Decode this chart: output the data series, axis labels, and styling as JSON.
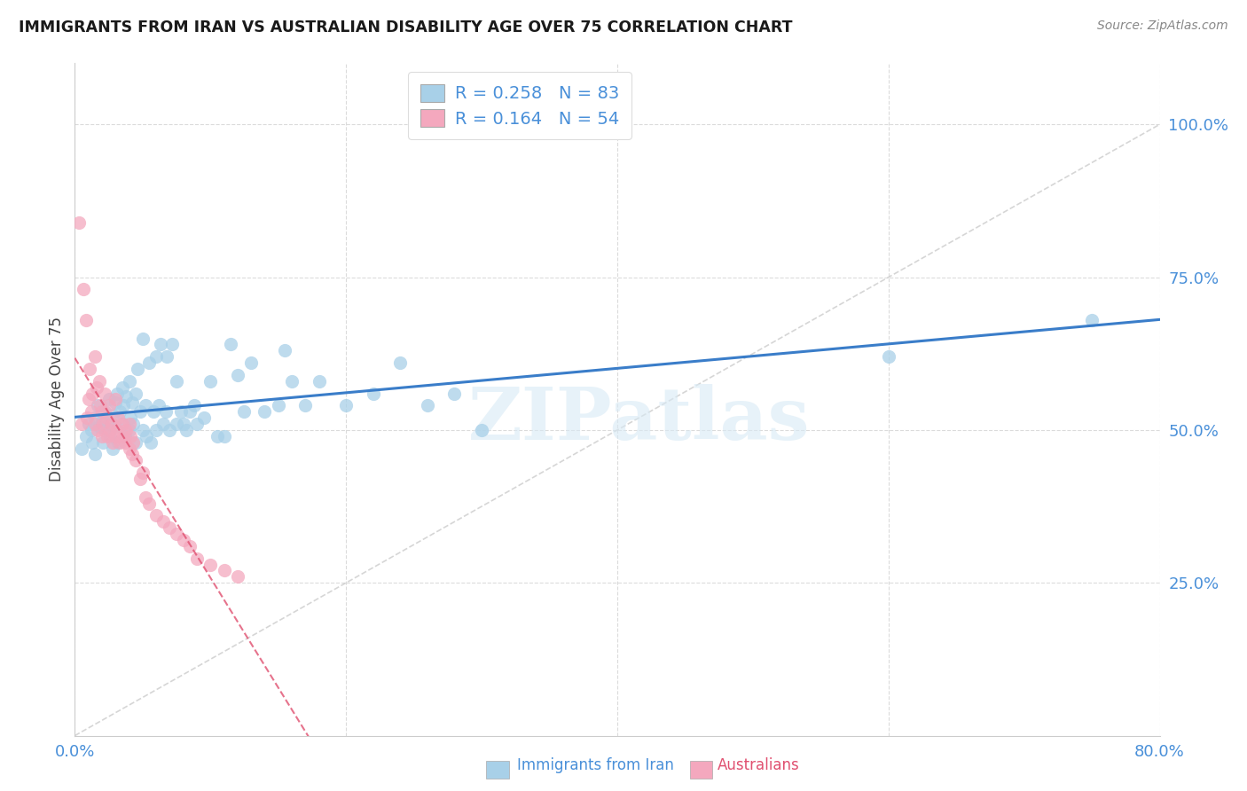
{
  "title": "IMMIGRANTS FROM IRAN VS AUSTRALIAN DISABILITY AGE OVER 75 CORRELATION CHART",
  "source_text": "Source: ZipAtlas.com",
  "ylabel": "Disability Age Over 75",
  "legend_label_1": "Immigrants from Iran",
  "legend_label_2": "Australians",
  "r1": 0.258,
  "n1": 83,
  "r2": 0.164,
  "n2": 54,
  "color1": "#a8d0e8",
  "color2": "#f4a8be",
  "line1_color": "#3a7dc9",
  "line2_color": "#e05070",
  "diag_line_color": "#cccccc",
  "xlim": [
    0.0,
    0.8
  ],
  "ylim": [
    0.0,
    1.1
  ],
  "watermark": "ZIPatlas",
  "scatter1_x": [
    0.005,
    0.008,
    0.01,
    0.012,
    0.013,
    0.015,
    0.015,
    0.017,
    0.018,
    0.02,
    0.021,
    0.022,
    0.022,
    0.025,
    0.025,
    0.026,
    0.028,
    0.028,
    0.03,
    0.03,
    0.031,
    0.032,
    0.033,
    0.035,
    0.035,
    0.036,
    0.037,
    0.038,
    0.04,
    0.04,
    0.041,
    0.042,
    0.043,
    0.045,
    0.045,
    0.046,
    0.048,
    0.05,
    0.05,
    0.052,
    0.053,
    0.055,
    0.056,
    0.058,
    0.06,
    0.06,
    0.062,
    0.063,
    0.065,
    0.067,
    0.068,
    0.07,
    0.072,
    0.075,
    0.075,
    0.078,
    0.08,
    0.082,
    0.085,
    0.088,
    0.09,
    0.095,
    0.1,
    0.105,
    0.11,
    0.115,
    0.12,
    0.125,
    0.13,
    0.14,
    0.15,
    0.155,
    0.16,
    0.17,
    0.18,
    0.2,
    0.22,
    0.24,
    0.26,
    0.28,
    0.3,
    0.6,
    0.75
  ],
  "scatter1_y": [
    0.47,
    0.49,
    0.51,
    0.5,
    0.48,
    0.52,
    0.46,
    0.54,
    0.505,
    0.515,
    0.48,
    0.53,
    0.5,
    0.55,
    0.51,
    0.49,
    0.525,
    0.47,
    0.545,
    0.505,
    0.56,
    0.48,
    0.53,
    0.57,
    0.51,
    0.54,
    0.49,
    0.555,
    0.5,
    0.58,
    0.52,
    0.545,
    0.51,
    0.56,
    0.48,
    0.6,
    0.53,
    0.65,
    0.5,
    0.54,
    0.49,
    0.61,
    0.48,
    0.53,
    0.62,
    0.5,
    0.54,
    0.64,
    0.51,
    0.53,
    0.62,
    0.5,
    0.64,
    0.51,
    0.58,
    0.53,
    0.51,
    0.5,
    0.53,
    0.54,
    0.51,
    0.52,
    0.58,
    0.49,
    0.49,
    0.64,
    0.59,
    0.53,
    0.61,
    0.53,
    0.54,
    0.63,
    0.58,
    0.54,
    0.58,
    0.54,
    0.56,
    0.61,
    0.54,
    0.56,
    0.5,
    0.62,
    0.68
  ],
  "scatter2_x": [
    0.003,
    0.005,
    0.006,
    0.008,
    0.009,
    0.01,
    0.011,
    0.012,
    0.013,
    0.015,
    0.015,
    0.016,
    0.017,
    0.018,
    0.019,
    0.02,
    0.02,
    0.021,
    0.022,
    0.023,
    0.024,
    0.025,
    0.026,
    0.027,
    0.028,
    0.03,
    0.03,
    0.031,
    0.032,
    0.033,
    0.035,
    0.036,
    0.037,
    0.038,
    0.04,
    0.04,
    0.041,
    0.042,
    0.043,
    0.045,
    0.048,
    0.05,
    0.052,
    0.055,
    0.06,
    0.065,
    0.07,
    0.075,
    0.08,
    0.085,
    0.09,
    0.1,
    0.11,
    0.12
  ],
  "scatter2_y": [
    0.84,
    0.51,
    0.73,
    0.68,
    0.52,
    0.55,
    0.6,
    0.53,
    0.56,
    0.62,
    0.51,
    0.57,
    0.5,
    0.58,
    0.54,
    0.49,
    0.53,
    0.51,
    0.56,
    0.52,
    0.49,
    0.54,
    0.5,
    0.51,
    0.48,
    0.55,
    0.49,
    0.5,
    0.52,
    0.48,
    0.51,
    0.49,
    0.48,
    0.5,
    0.47,
    0.51,
    0.49,
    0.46,
    0.48,
    0.45,
    0.42,
    0.43,
    0.39,
    0.38,
    0.36,
    0.35,
    0.34,
    0.33,
    0.32,
    0.31,
    0.29,
    0.28,
    0.27,
    0.26
  ]
}
